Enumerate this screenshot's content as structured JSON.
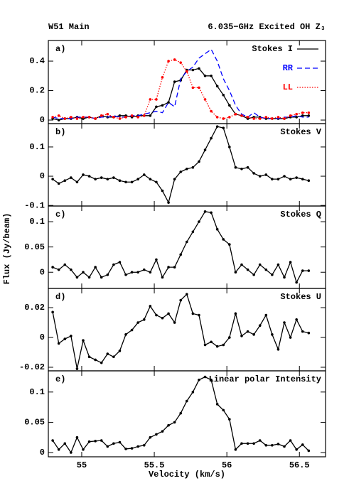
{
  "header": {
    "left": "W51 Main",
    "right": "6.035−GHz Excited OH Z₃"
  },
  "ylabel": "Flux (Jy/beam)",
  "chart_data": [
    {
      "type": "line",
      "label": "a)",
      "legend": "upper right",
      "x": [
        54.8,
        54.842,
        54.884,
        54.926,
        54.968,
        55.01,
        55.052,
        55.094,
        55.136,
        55.178,
        55.22,
        55.262,
        55.304,
        55.346,
        55.388,
        55.43,
        55.472,
        55.514,
        55.556,
        55.598,
        55.64,
        55.682,
        55.724,
        55.766,
        55.808,
        55.85,
        55.892,
        55.934,
        55.976,
        56.018,
        56.06,
        56.102,
        56.144,
        56.186,
        56.228,
        56.27,
        56.312,
        56.354,
        56.396,
        56.438,
        56.48,
        56.522,
        56.564
      ],
      "xlim": [
        54.77,
        56.68
      ],
      "xticks": [
        55,
        55.5,
        56,
        56.5
      ],
      "ylim": [
        -0.024,
        0.54
      ],
      "yticks": [
        0,
        0.2,
        0.4
      ],
      "series": [
        {
          "name": "Stokes I",
          "color": "#000000",
          "dash": "solid",
          "markers": true,
          "values": [
            0.01,
            0.0,
            0.01,
            0.01,
            0.02,
            0.01,
            0.02,
            0.01,
            0.03,
            0.02,
            0.02,
            0.03,
            0.03,
            0.02,
            0.03,
            0.03,
            0.03,
            0.09,
            0.1,
            0.12,
            0.26,
            0.27,
            0.34,
            0.34,
            0.35,
            0.3,
            0.3,
            0.23,
            0.17,
            0.1,
            0.04,
            0.03,
            0.01,
            0.02,
            0.02,
            0.01,
            0.01,
            0.01,
            0.01,
            0.02,
            0.02,
            0.03,
            0.03
          ]
        },
        {
          "name": "RR",
          "color": "#0000ff",
          "dash": "dashed",
          "markers": false,
          "values": [
            0.02,
            0.01,
            0.01,
            0.01,
            0.02,
            0.02,
            0.02,
            0.01,
            0.02,
            0.02,
            0.03,
            0.02,
            0.02,
            0.03,
            0.03,
            0.04,
            0.05,
            0.06,
            0.05,
            0.12,
            0.09,
            0.28,
            0.33,
            0.36,
            0.42,
            0.45,
            0.48,
            0.4,
            0.28,
            0.2,
            0.1,
            0.04,
            0.02,
            0.05,
            0.02,
            0.01,
            0.01,
            0.01,
            0.02,
            0.02,
            0.03,
            0.02,
            0.02
          ]
        },
        {
          "name": "LL",
          "color": "#ff0000",
          "dash": "dotted",
          "markers": true,
          "values": [
            0.02,
            0.03,
            0.01,
            0.02,
            0.01,
            0.02,
            0.02,
            0.01,
            0.03,
            0.04,
            0.02,
            0.01,
            0.02,
            0.03,
            0.02,
            0.03,
            0.14,
            0.14,
            0.29,
            0.4,
            0.41,
            0.39,
            0.33,
            0.22,
            0.22,
            0.14,
            0.06,
            0.02,
            0.01,
            0.02,
            0.04,
            0.03,
            0.02,
            0.01,
            0.01,
            0.02,
            0.01,
            0.02,
            0.01,
            0.03,
            0.04,
            0.05,
            0.05
          ]
        }
      ]
    },
    {
      "type": "line",
      "label": "b)",
      "annotation": "Stokes V",
      "x": [
        54.8,
        54.842,
        54.884,
        54.926,
        54.968,
        55.01,
        55.052,
        55.094,
        55.136,
        55.178,
        55.22,
        55.262,
        55.304,
        55.346,
        55.388,
        55.43,
        55.472,
        55.514,
        55.556,
        55.598,
        55.64,
        55.682,
        55.724,
        55.766,
        55.808,
        55.85,
        55.892,
        55.934,
        55.976,
        56.018,
        56.06,
        56.102,
        56.144,
        56.186,
        56.228,
        56.27,
        56.312,
        56.354,
        56.396,
        56.438,
        56.48,
        56.522,
        56.564
      ],
      "xlim": [
        54.77,
        56.68
      ],
      "xticks": [
        55,
        55.5,
        56,
        56.5
      ],
      "ylim": [
        -0.102,
        0.18
      ],
      "yticks": [
        -0.1,
        0,
        0.1
      ],
      "color": "#000000",
      "values": [
        -0.01,
        -0.025,
        -0.015,
        -0.005,
        -0.02,
        0.005,
        0.0,
        -0.01,
        -0.005,
        -0.01,
        -0.005,
        -0.015,
        -0.02,
        -0.02,
        -0.01,
        0.005,
        -0.01,
        -0.02,
        -0.05,
        -0.09,
        -0.01,
        0.015,
        0.025,
        0.03,
        0.05,
        0.09,
        0.13,
        0.17,
        0.165,
        0.1,
        0.03,
        0.025,
        0.03,
        0.01,
        0.0,
        0.005,
        -0.01,
        -0.01,
        0.0,
        -0.01,
        -0.005,
        -0.01,
        -0.015
      ]
    },
    {
      "type": "line",
      "label": "c)",
      "annotation": "Stokes Q",
      "x": [
        54.8,
        54.842,
        54.884,
        54.926,
        54.968,
        55.01,
        55.052,
        55.094,
        55.136,
        55.178,
        55.22,
        55.262,
        55.304,
        55.346,
        55.388,
        55.43,
        55.472,
        55.514,
        55.556,
        55.598,
        55.64,
        55.682,
        55.724,
        55.766,
        55.808,
        55.85,
        55.892,
        55.934,
        55.976,
        56.018,
        56.06,
        56.102,
        56.144,
        56.186,
        56.228,
        56.27,
        56.312,
        56.354,
        56.396,
        56.438,
        56.48,
        56.522,
        56.564
      ],
      "xlim": [
        54.77,
        56.68
      ],
      "xticks": [
        55,
        55.5,
        56,
        56.5
      ],
      "ylim": [
        -0.032,
        0.131
      ],
      "yticks": [
        0,
        0.05,
        0.1
      ],
      "color": "#000000",
      "values": [
        0.01,
        0.005,
        0.015,
        0.005,
        -0.01,
        0.0,
        -0.01,
        0.01,
        -0.01,
        -0.005,
        0.015,
        0.02,
        -0.005,
        0.0,
        0.0,
        0.005,
        0.0,
        0.025,
        -0.01,
        0.01,
        0.01,
        0.035,
        0.06,
        0.08,
        0.1,
        0.12,
        0.118,
        0.085,
        0.065,
        0.055,
        0.0,
        0.015,
        0.005,
        -0.005,
        0.015,
        0.005,
        -0.005,
        0.015,
        -0.01,
        0.02,
        -0.02,
        0.003,
        0.003
      ]
    },
    {
      "type": "line",
      "label": "d)",
      "annotation": "Stokes U",
      "x": [
        54.8,
        54.842,
        54.884,
        54.926,
        54.968,
        55.01,
        55.052,
        55.094,
        55.136,
        55.178,
        55.22,
        55.262,
        55.304,
        55.346,
        55.388,
        55.43,
        55.472,
        55.514,
        55.556,
        55.598,
        55.64,
        55.682,
        55.724,
        55.766,
        55.808,
        55.85,
        55.892,
        55.934,
        55.976,
        56.018,
        56.06,
        56.102,
        56.144,
        56.186,
        56.228,
        56.27,
        56.312,
        56.354,
        56.396,
        56.438,
        56.48,
        56.522,
        56.564
      ],
      "xlim": [
        54.77,
        56.68
      ],
      "xticks": [
        55,
        55.5,
        56,
        56.5
      ],
      "ylim": [
        -0.0224,
        0.0329
      ],
      "yticks": [
        -0.02,
        0,
        0.02
      ],
      "color": "#000000",
      "values": [
        0.017,
        -0.004,
        -0.001,
        0.001,
        -0.021,
        -0.002,
        -0.013,
        -0.015,
        -0.017,
        -0.011,
        -0.013,
        -0.009,
        0.002,
        0.005,
        0.01,
        0.012,
        0.021,
        0.015,
        0.013,
        0.016,
        0.01,
        0.025,
        0.029,
        0.016,
        0.015,
        -0.005,
        -0.003,
        -0.006,
        -0.005,
        0.0,
        0.016,
        0.001,
        0.004,
        0.002,
        0.008,
        0.015,
        0.002,
        -0.008,
        0.01,
        0.0,
        0.012,
        0.004,
        0.003
      ]
    },
    {
      "type": "line",
      "label": "e)",
      "annotation": "Linear polar Intensity",
      "xlabel": "Velocity (km/s)",
      "x": [
        54.8,
        54.842,
        54.884,
        54.926,
        54.968,
        55.01,
        55.052,
        55.094,
        55.136,
        55.178,
        55.22,
        55.262,
        55.304,
        55.346,
        55.388,
        55.43,
        55.472,
        55.514,
        55.556,
        55.598,
        55.64,
        55.682,
        55.724,
        55.766,
        55.808,
        55.85,
        55.892,
        55.934,
        55.976,
        56.018,
        56.06,
        56.102,
        56.144,
        56.186,
        56.228,
        56.27,
        56.312,
        56.354,
        56.396,
        56.438,
        56.48,
        56.522,
        56.564
      ],
      "xlim": [
        54.77,
        56.68
      ],
      "xticks": [
        55,
        55.5,
        56,
        56.5
      ],
      "ylim": [
        -0.007,
        0.135
      ],
      "yticks": [
        0,
        0.05,
        0.1
      ],
      "color": "#000000",
      "values": [
        0.02,
        0.005,
        0.015,
        0.0,
        0.025,
        0.005,
        0.018,
        0.019,
        0.02,
        0.01,
        0.015,
        0.017,
        0.006,
        0.007,
        0.01,
        0.012,
        0.025,
        0.03,
        0.035,
        0.045,
        0.05,
        0.065,
        0.085,
        0.1,
        0.12,
        0.125,
        0.12,
        0.08,
        0.07,
        0.055,
        0.005,
        0.015,
        0.015,
        0.015,
        0.02,
        0.012,
        0.012,
        0.014,
        0.01,
        0.02,
        0.005,
        0.013,
        0.003
      ]
    }
  ]
}
